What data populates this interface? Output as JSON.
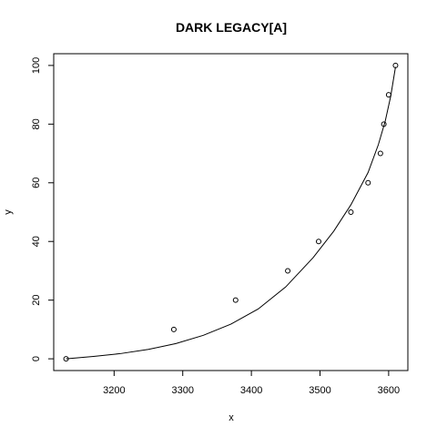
{
  "chart_data": {
    "type": "scatter",
    "title": "DARK LEGACY[A]",
    "xlabel": "x",
    "ylabel": "y",
    "xlim": [
      3112,
      3628
    ],
    "ylim": [
      -4,
      104
    ],
    "xticks": [
      3200,
      3300,
      3400,
      3500,
      3600
    ],
    "yticks": [
      0,
      20,
      40,
      60,
      80,
      100
    ],
    "grid": false,
    "legend": "none",
    "points": {
      "x": [
        3130,
        3287,
        3377,
        3453,
        3498,
        3545,
        3570,
        3588,
        3593,
        3600,
        3610
      ],
      "y": [
        0,
        10,
        20,
        30,
        40,
        50,
        60,
        70,
        80,
        90,
        100
      ]
    },
    "fit_curve": {
      "x": [
        3130,
        3170,
        3210,
        3250,
        3290,
        3330,
        3370,
        3410,
        3450,
        3490,
        3520,
        3545,
        3570,
        3585,
        3595,
        3603,
        3610
      ],
      "y": [
        0,
        0.8,
        1.8,
        3.2,
        5.2,
        8.0,
        11.8,
        17.0,
        24.5,
        34.5,
        43.5,
        52.5,
        63.5,
        73.0,
        81.0,
        89.5,
        99.5
      ]
    },
    "colors": {
      "points": "#000000",
      "curve": "#000000",
      "axes": "#000000"
    }
  }
}
